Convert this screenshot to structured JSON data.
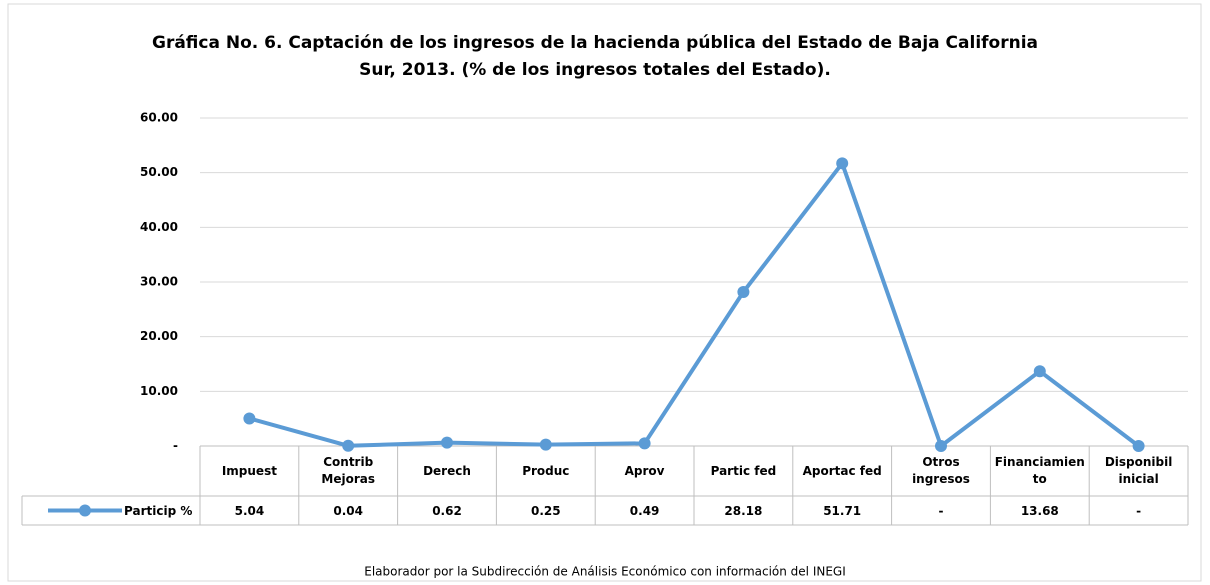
{
  "chart_data": {
    "type": "line",
    "title": "Gráfica No. 6. Captación de los ingresos de la hacienda pública del Estado de Baja California Sur, 2013. (% de los ingresos totales del Estado).",
    "categories": [
      "Impuest",
      "Contrib Mejoras",
      "Derech",
      "Produc",
      "Aprov",
      "Partic fed",
      "Aportac fed",
      "Otros ingresos",
      "Financiamiento",
      "Disponibil inicial"
    ],
    "series": [
      {
        "name": "Particip %",
        "color": "#5b9bd5",
        "values": [
          5.04,
          0.04,
          0.62,
          0.25,
          0.49,
          28.18,
          51.71,
          0,
          13.68,
          0
        ],
        "value_labels": [
          "5.04",
          "0.04",
          "0.62",
          "0.25",
          "0.49",
          "28.18",
          "51.71",
          "-",
          "13.68",
          "-"
        ]
      }
    ],
    "ylim": [
      0,
      60
    ],
    "yticks": [
      {
        "value": 0,
        "label": "-"
      },
      {
        "value": 10,
        "label": "10.00"
      },
      {
        "value": 20,
        "label": "20.00"
      },
      {
        "value": 30,
        "label": "30.00"
      },
      {
        "value": 40,
        "label": "40.00"
      },
      {
        "value": 50,
        "label": "50.00"
      },
      {
        "value": 60,
        "label": "60.00"
      }
    ],
    "grid": true,
    "footnote": "Elaborador por la Subdirección de Análisis Económico con información del INEGI"
  }
}
